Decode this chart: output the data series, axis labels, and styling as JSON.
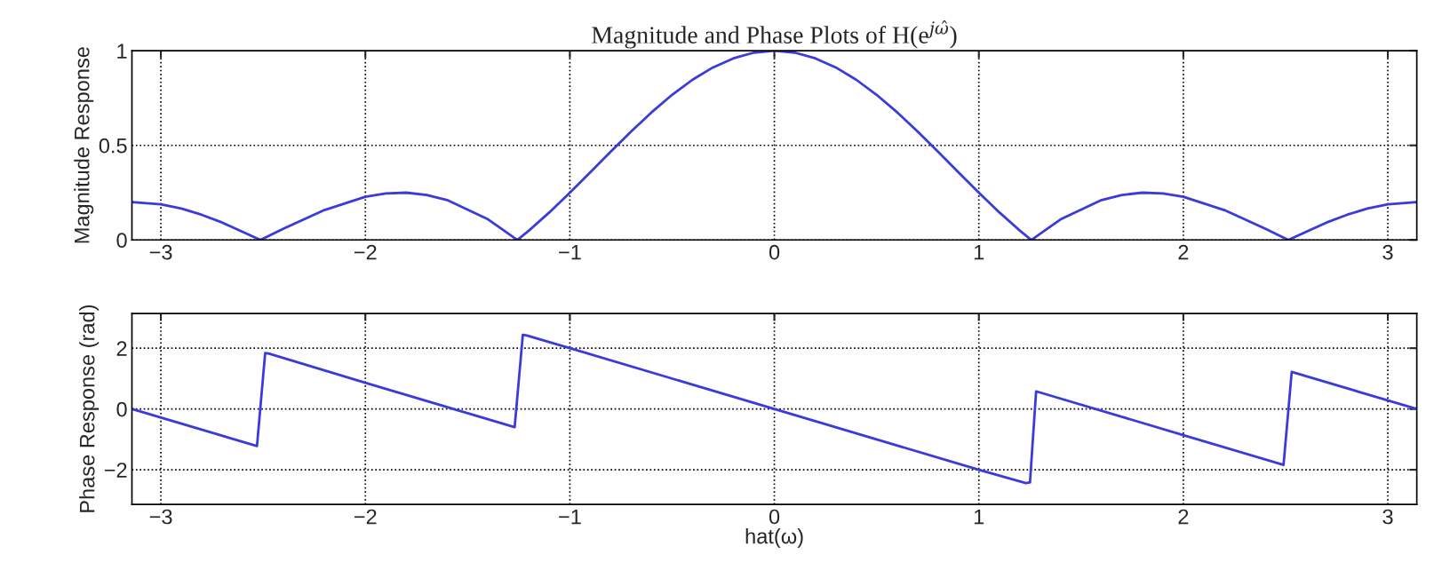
{
  "chart_data": [
    {
      "type": "line",
      "title": "Magnitude and Phase Plots of H(e$^{jω̂}$)",
      "ylabel": "Magnitude Response",
      "series": [
        {
          "color": "#3b3bdb",
          "x": [
            -3.1416,
            -3.0,
            -2.9,
            -2.8,
            -2.7,
            -2.5133,
            -2.4,
            -2.2,
            -2.0,
            -1.9,
            -1.8,
            -1.7,
            -1.6,
            -1.4,
            -1.2566,
            -1.2,
            -1.1,
            -1.0,
            -0.9,
            -0.8,
            -0.7,
            -0.6,
            -0.5,
            -0.4,
            -0.3,
            -0.2,
            -0.1,
            0,
            0.1,
            0.2,
            0.3,
            0.4,
            0.5,
            0.6,
            0.7,
            0.8,
            0.9,
            1.0,
            1.1,
            1.2,
            1.2566,
            1.4,
            1.6,
            1.7,
            1.8,
            1.9,
            2.0,
            2.2,
            2.4,
            2.5133,
            2.7,
            2.8,
            2.9,
            3.0,
            3.1416
          ],
          "values": [
            0.2,
            0.188,
            0.166,
            0.133,
            0.092,
            0,
            0.06,
            0.158,
            0.228,
            0.246,
            0.25,
            0.238,
            0.211,
            0.109,
            0,
            0.05,
            0.146,
            0.25,
            0.358,
            0.467,
            0.574,
            0.675,
            0.767,
            0.847,
            0.912,
            0.96,
            0.99,
            1,
            0.99,
            0.96,
            0.912,
            0.847,
            0.767,
            0.675,
            0.574,
            0.467,
            0.358,
            0.25,
            0.146,
            0.05,
            0,
            0.109,
            0.211,
            0.238,
            0.25,
            0.246,
            0.228,
            0.158,
            0.06,
            0,
            0.092,
            0.133,
            0.166,
            0.188,
            0.2
          ]
        }
      ],
      "xlim": [
        -3.1416,
        3.1416
      ],
      "xticks": [
        {
          "value": -3,
          "label": "−3"
        },
        {
          "value": -2,
          "label": "−2"
        },
        {
          "value": -1,
          "label": "−1"
        },
        0,
        1,
        2,
        3
      ],
      "ylim": [
        0,
        1
      ],
      "yticks": [
        0,
        0.5,
        1
      ],
      "grid": true,
      "line_style": "solid",
      "marker": "none"
    },
    {
      "type": "line",
      "xlabel": "hat(ω)",
      "ylabel": "Phase Response (rad)",
      "series": [
        {
          "color": "#3b3bdb",
          "x": [
            -3.1416,
            -2.53,
            -2.49,
            -2.47,
            -2.0,
            -1.5,
            -1.27,
            -1.23,
            -1.21,
            -1.0,
            0,
            1.0,
            1.23,
            1.25,
            1.28,
            2.0,
            2.49,
            2.53,
            3.1416
          ],
          "values": [
            0,
            -1.22,
            1.84,
            1.82,
            0.86,
            -0.14,
            -0.6,
            2.44,
            2.42,
            2.0,
            0,
            -2.0,
            -2.44,
            -2.42,
            0.58,
            -0.86,
            -1.84,
            1.22,
            0
          ]
        }
      ],
      "xlim": [
        -3.1416,
        3.1416
      ],
      "xticks": [
        {
          "value": -3,
          "label": "−3"
        },
        {
          "value": -2,
          "label": "−2"
        },
        {
          "value": -1,
          "label": "−1"
        },
        0,
        1,
        2,
        3
      ],
      "ylim": [
        -3.1416,
        3.1416
      ],
      "yticks": [
        {
          "value": -2,
          "label": "−2"
        },
        0,
        2
      ],
      "grid": true,
      "line_style": "solid",
      "marker": "none"
    }
  ]
}
